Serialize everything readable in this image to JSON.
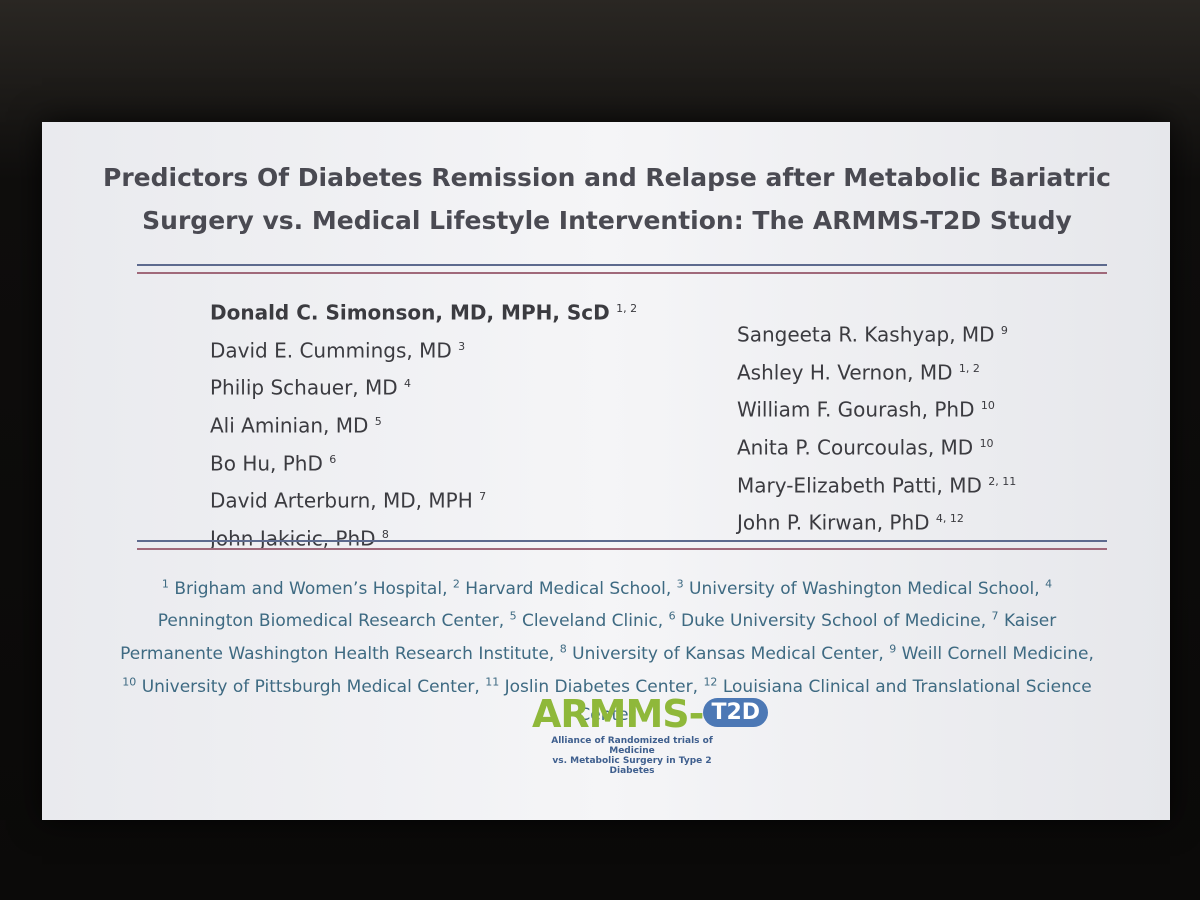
{
  "slide": {
    "title": [
      "Predictors Of Diabetes Remission and Relapse after Metabolic Bariatric",
      "Surgery vs. Medical Lifestyle Intervention: The ARMMS-T2D Study"
    ],
    "authors_left": [
      {
        "name": "Donald C. Simonson, MD, MPH, ScD",
        "sup": "1, 2"
      },
      {
        "name": "David E. Cummings, MD",
        "sup": "3"
      },
      {
        "name": "Philip Schauer, MD",
        "sup": "4"
      },
      {
        "name": "Ali Aminian, MD",
        "sup": "5"
      },
      {
        "name": "Bo Hu, PhD",
        "sup": "6"
      },
      {
        "name": "David Arterburn, MD, MPH",
        "sup": "7"
      },
      {
        "name": "John Jakicic, PhD",
        "sup": "8"
      }
    ],
    "authors_right": [
      {
        "name": "Sangeeta R. Kashyap, MD",
        "sup": "9"
      },
      {
        "name": "Ashley H. Vernon, MD",
        "sup": "1, 2"
      },
      {
        "name": "William F. Gourash, PhD",
        "sup": "10"
      },
      {
        "name": "Anita P. Courcoulas, MD",
        "sup": "10"
      },
      {
        "name": "Mary-Elizabeth Patti, MD",
        "sup": "2, 11"
      },
      {
        "name": "John P. Kirwan, PhD",
        "sup": "4, 12"
      }
    ],
    "affiliations": [
      {
        "num": "1",
        "name": "Brigham and Women’s Hospital,"
      },
      {
        "num": "2",
        "name": "Harvard Medical School,"
      },
      {
        "num": "3",
        "name": "University of Washington Medical School,"
      },
      {
        "num": "4",
        "name": "Pennington Biomedical Research Center,"
      },
      {
        "num": "5",
        "name": "Cleveland Clinic,"
      },
      {
        "num": "6",
        "name": "Duke University School of Medicine,"
      },
      {
        "num": "7",
        "name": "Kaiser Permanente Washington Health Research Institute,"
      },
      {
        "num": "8",
        "name": "University of Kansas Medical Center,"
      },
      {
        "num": "9",
        "name": "Weill Cornell Medicine,"
      },
      {
        "num": "10",
        "name": "University of Pittsburgh Medical Center,"
      },
      {
        "num": "11",
        "name": "Joslin Diabetes Center,"
      },
      {
        "num": "12",
        "name": "Louisiana Clinical and Translational Science Center"
      }
    ],
    "logo": {
      "main": "ARMMS-",
      "badge": "T2D",
      "tagline": [
        "Alliance of Randomized trials of Medicine",
        "vs. Metabolic Surgery in Type 2 Diabetes"
      ]
    }
  }
}
